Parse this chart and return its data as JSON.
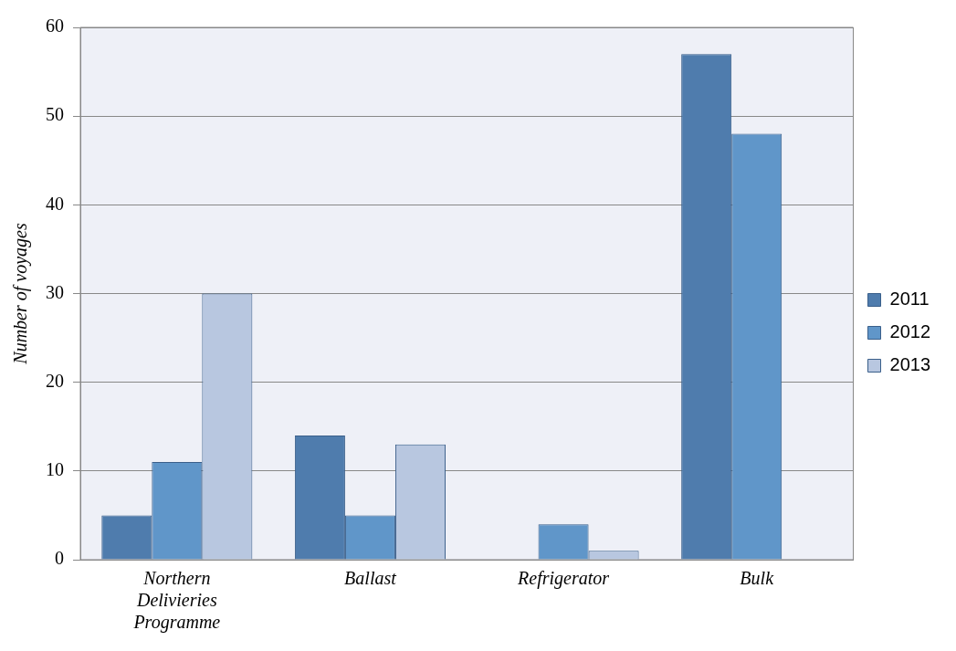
{
  "chart_data": {
    "type": "bar",
    "ylabel": "Number of voyages",
    "categories": [
      "Northern Delivieries Programme",
      "Ballast",
      "Refrigerator",
      "Bulk"
    ],
    "series": [
      {
        "name": "2011",
        "color": "#4f7cad",
        "values": [
          5,
          14,
          null,
          57
        ]
      },
      {
        "name": "2012",
        "color": "#6096c9",
        "values": [
          11,
          5,
          4,
          48
        ]
      },
      {
        "name": "2013",
        "color": "#b8c7e0",
        "values": [
          30,
          13,
          1,
          null
        ]
      }
    ],
    "ylim": [
      0,
      60
    ],
    "yticks": [
      0,
      10,
      20,
      30,
      40,
      50,
      60
    ],
    "grid": "y",
    "legend": "right"
  }
}
